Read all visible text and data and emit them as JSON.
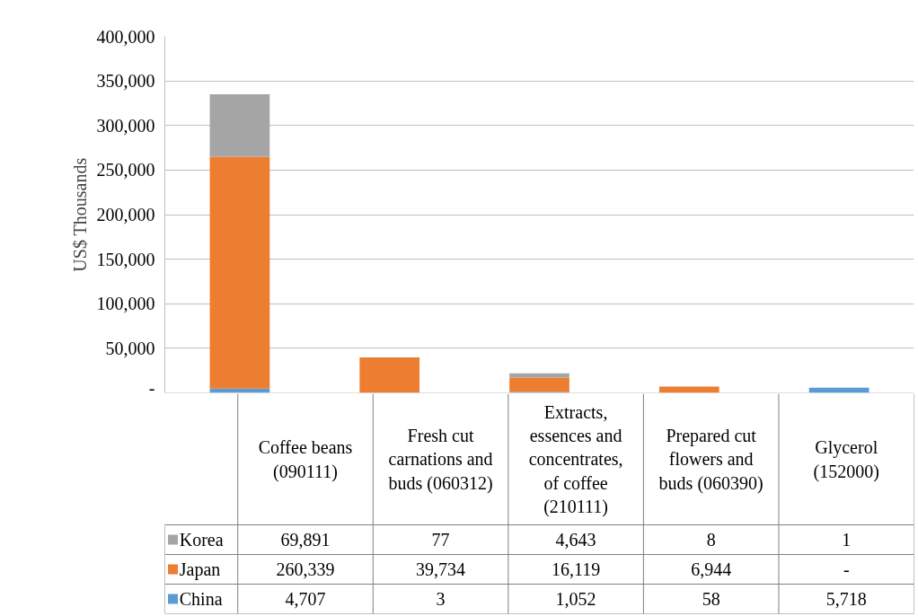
{
  "chart_data": {
    "type": "bar",
    "stacked": true,
    "ylabel": "US$ Thousands",
    "categories": [
      "Coffee beans (090111)",
      "Fresh cut carnations and buds (060312)",
      "Extracts, essences and concentrates, of coffee (210111)",
      "Prepared cut flowers and buds (060390)",
      "Glycerol (152000)"
    ],
    "series": [
      {
        "name": "China",
        "color": "#5b9bd5",
        "values": [
          4707,
          3,
          1052,
          58,
          5718
        ],
        "value_labels": [
          "4,707",
          "3",
          "1,052",
          "58",
          "5,718"
        ]
      },
      {
        "name": "Japan",
        "color": "#ed7d31",
        "values": [
          260339,
          39734,
          16119,
          6944,
          null
        ],
        "value_labels": [
          "260,339",
          "39,734",
          "16,119",
          "6,944",
          "-"
        ]
      },
      {
        "name": "Korea",
        "color": "#a5a5a5",
        "values": [
          69891,
          77,
          4643,
          8,
          1
        ],
        "value_labels": [
          "69,891",
          "77",
          "4,643",
          "8",
          "1"
        ]
      }
    ],
    "ylim": [
      0,
      400000
    ],
    "yticks": [
      {
        "value": 0,
        "label": "-"
      },
      {
        "value": 50000,
        "label": "50,000"
      },
      {
        "value": 100000,
        "label": "100,000"
      },
      {
        "value": 150000,
        "label": "150,000"
      },
      {
        "value": 200000,
        "label": "200,000"
      },
      {
        "value": 250000,
        "label": "250,000"
      },
      {
        "value": 300000,
        "label": "300,000"
      },
      {
        "value": 350000,
        "label": "350,000"
      },
      {
        "value": 400000,
        "label": "400,000"
      }
    ],
    "grid": "y",
    "legend": "bottom"
  }
}
